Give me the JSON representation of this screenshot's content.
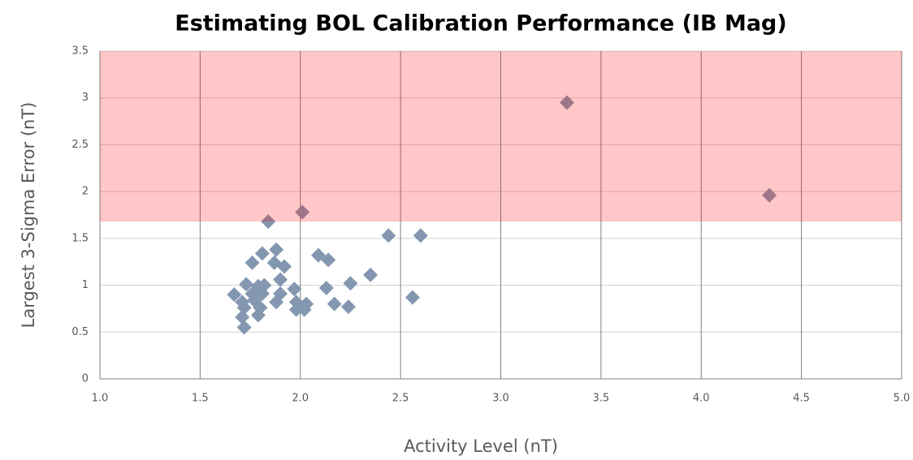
{
  "chart_data": {
    "type": "scatter",
    "title": "Estimating BOL Calibration Performance (IB Mag)",
    "x_label": "Activity Level (nT)",
    "y_label": "Largest 3-Sigma Error (nT)",
    "xlim": [
      1,
      5
    ],
    "ylim": [
      0,
      3.5
    ],
    "xticks": [
      {
        "value": 1,
        "label": "1.0"
      },
      {
        "value": 1.5,
        "label": "1.5"
      },
      {
        "value": 2,
        "label": "2.0"
      },
      {
        "value": 2.5,
        "label": "2.5"
      },
      {
        "value": 3,
        "label": "3.0"
      },
      {
        "value": 3.5,
        "label": "3.5"
      },
      {
        "value": 4,
        "label": "4.0"
      },
      {
        "value": 4.5,
        "label": "4.5"
      },
      {
        "value": 5,
        "label": "5.0"
      }
    ],
    "yticks": [
      0,
      0.5,
      1,
      1.5,
      2,
      2.5,
      3,
      3.5
    ],
    "grid": true,
    "shaded_region": {
      "ylim": [
        1.68,
        3.5
      ],
      "color": "#ff0000",
      "opacity": 0.22
    },
    "series": [
      {
        "color": "#8497b0",
        "x": [
          3.33,
          4.34,
          1.84,
          2.01,
          2.44,
          2.6,
          1.88,
          1.81,
          1.76,
          1.87,
          1.92,
          2.09,
          2.14,
          2.35,
          2.25,
          2.13,
          2.56,
          1.9,
          1.97,
          1.67,
          1.73,
          1.79,
          1.82,
          1.76,
          1.81,
          1.9,
          1.71,
          1.77,
          1.88,
          1.98,
          2.03,
          2.17,
          2.24,
          1.98,
          2.02,
          1.72,
          1.8,
          1.79,
          1.71,
          1.72
        ],
        "values": [
          2.95,
          1.96,
          1.68,
          1.78,
          1.53,
          1.53,
          1.38,
          1.34,
          1.24,
          1.24,
          1.2,
          1.32,
          1.27,
          1.11,
          1.02,
          0.97,
          0.87,
          1.06,
          0.96,
          0.9,
          1.01,
          0.99,
          1.0,
          0.91,
          0.91,
          0.91,
          0.82,
          0.84,
          0.82,
          0.82,
          0.8,
          0.8,
          0.77,
          0.74,
          0.74,
          0.76,
          0.76,
          0.68,
          0.66,
          0.55
        ]
      }
    ]
  }
}
